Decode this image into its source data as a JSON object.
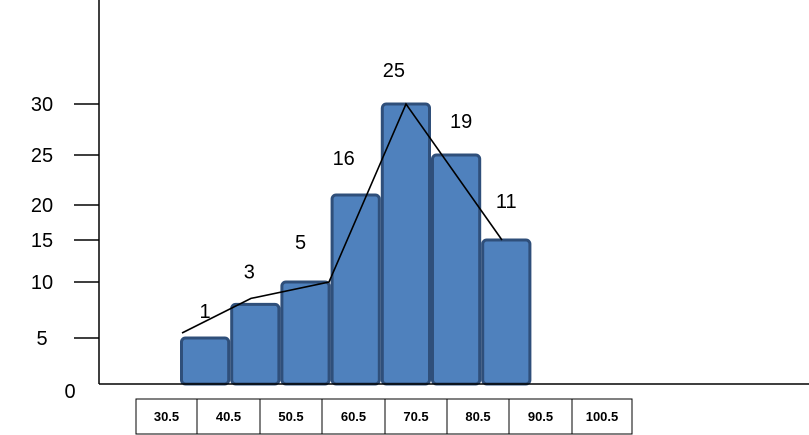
{
  "chart_data": {
    "type": "bar",
    "title": "",
    "xlabel": "",
    "ylabel": "",
    "categories": [
      "30.5",
      "40.5",
      "50.5",
      "60.5",
      "70.5",
      "80.5",
      "90.5",
      "100.5"
    ],
    "y_ticks": [
      {
        "label": "0",
        "value": 0
      },
      {
        "label": "5",
        "value": 5
      },
      {
        "label": "10",
        "value": 10
      },
      {
        "label": "15",
        "value": 15
      },
      {
        "label": "20",
        "value": 20
      },
      {
        "label": "25",
        "value": 25
      },
      {
        "label": "30",
        "value": 30
      }
    ],
    "bars": [
      {
        "value": 5,
        "label": "1"
      },
      {
        "value": 8,
        "label": "3"
      },
      {
        "value": 10,
        "label": "5"
      },
      {
        "value": 21,
        "label": "16"
      },
      {
        "value": 30,
        "label": "25"
      },
      {
        "value": 25,
        "label": "19"
      },
      {
        "value": 15,
        "label": "11"
      }
    ],
    "polygon": {
      "points": [
        5,
        8,
        10,
        21,
        30,
        25,
        15
      ]
    },
    "colors": {
      "bar_fill": "#4f81bd",
      "bar_stroke": "#2f4f7a",
      "line": "#000000"
    }
  }
}
